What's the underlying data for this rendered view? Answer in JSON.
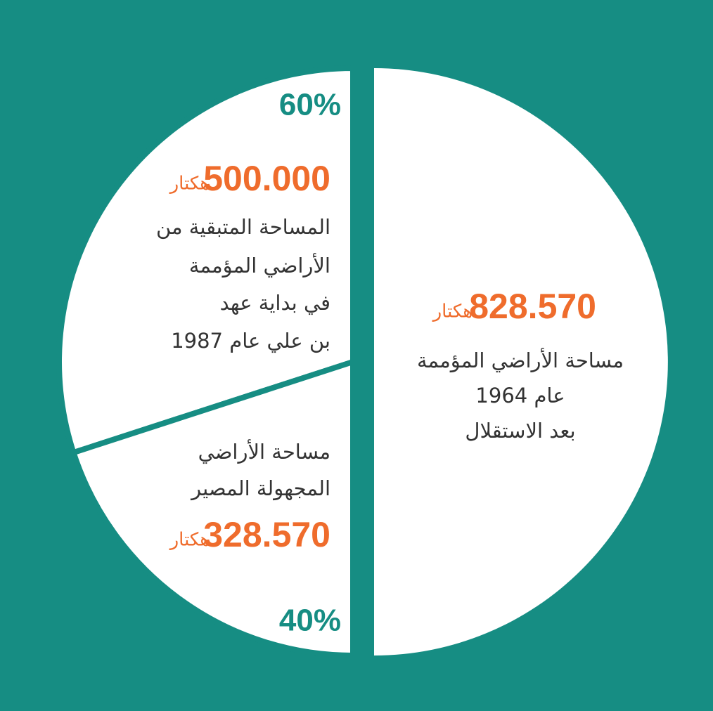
{
  "chart_data": {
    "type": "pie",
    "whole": {
      "amount": "828.570",
      "unit": "هكتار",
      "lines": [
        "مساحة الأراضي المؤممة",
        "عام 1964",
        "بعد الاستقلال"
      ]
    },
    "values": [
      60,
      40
    ],
    "value_labels": [
      "60%",
      "40%"
    ],
    "parts": [
      {
        "amount": "500.000",
        "unit": "هكتار",
        "lines": [
          "المساحة المتبقية من",
          "الأراضي المؤممة",
          "في بداية عهد",
          "بن علي عام 1987"
        ]
      },
      {
        "amount": "328.570",
        "unit": "هكتار",
        "lines": [
          "مساحة الأراضي",
          "المجهولة المصير"
        ]
      }
    ],
    "background": "#168d83",
    "color": "#ffffff",
    "accent": "#ef6c2c",
    "text_color": "#333333"
  }
}
